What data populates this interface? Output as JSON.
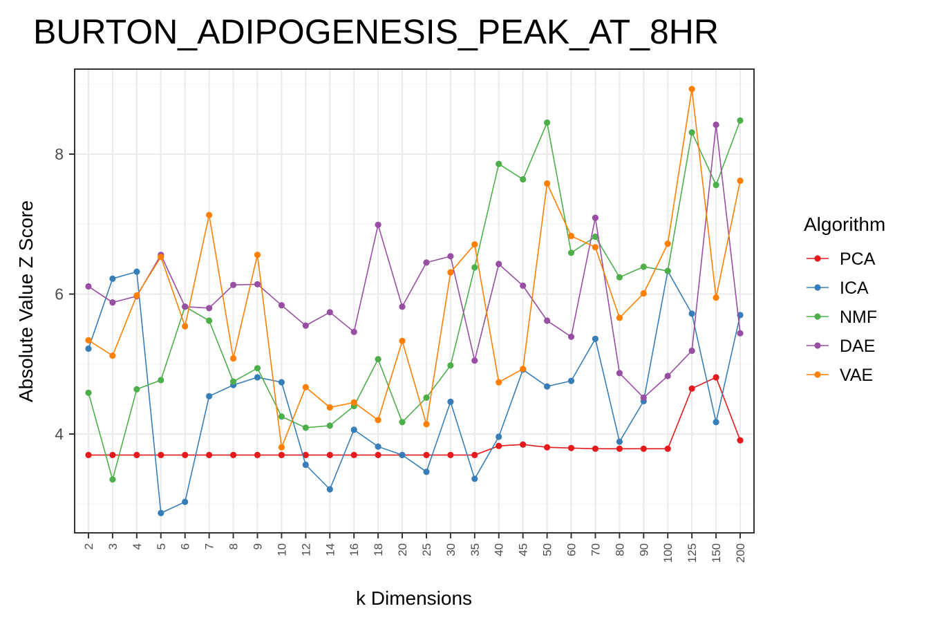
{
  "chart_data": {
    "type": "line",
    "title": "BURTON_ADIPOGENESIS_PEAK_AT_8HR",
    "xlabel": "k Dimensions",
    "ylabel": "Absolute Value Z Score",
    "categories": [
      "2",
      "3",
      "4",
      "5",
      "6",
      "7",
      "8",
      "9",
      "10",
      "12",
      "14",
      "16",
      "18",
      "20",
      "25",
      "30",
      "35",
      "40",
      "45",
      "50",
      "60",
      "70",
      "80",
      "90",
      "100",
      "125",
      "150",
      "200"
    ],
    "yticks": [
      4,
      6,
      8
    ],
    "ylim": [
      2.6,
      9.2
    ],
    "grid": true,
    "legend": {
      "title": "Algorithm",
      "placement": "right"
    },
    "series": [
      {
        "name": "PCA",
        "color": "#e41a1c",
        "values": [
          3.7,
          3.7,
          3.7,
          3.7,
          3.7,
          3.7,
          3.7,
          3.7,
          3.7,
          3.7,
          3.7,
          3.7,
          3.7,
          3.7,
          3.7,
          3.7,
          3.7,
          3.83,
          3.85,
          3.81,
          3.8,
          3.79,
          3.79,
          3.79,
          3.79,
          4.65,
          4.81,
          3.91
        ]
      },
      {
        "name": "ICA",
        "color": "#377eb8",
        "values": [
          5.22,
          6.22,
          6.32,
          2.87,
          3.03,
          4.54,
          4.7,
          4.81,
          4.74,
          3.56,
          3.21,
          4.06,
          3.82,
          3.7,
          3.46,
          4.46,
          3.36,
          3.96,
          4.92,
          4.68,
          4.76,
          5.36,
          3.89,
          4.47,
          6.33,
          5.72,
          4.17,
          5.7
        ]
      },
      {
        "name": "NMF",
        "color": "#4daf4a",
        "values": [
          4.59,
          3.35,
          4.64,
          4.77,
          5.82,
          5.62,
          4.75,
          4.94,
          4.25,
          4.09,
          4.12,
          4.4,
          5.07,
          4.17,
          4.52,
          4.98,
          6.38,
          7.86,
          7.64,
          8.45,
          6.59,
          6.82,
          6.24,
          6.39,
          6.33,
          8.31,
          7.56,
          8.48
        ]
      },
      {
        "name": "DAE",
        "color": "#984ea3",
        "values": [
          6.11,
          5.88,
          5.97,
          6.56,
          5.82,
          5.8,
          6.13,
          6.14,
          5.84,
          5.55,
          5.74,
          5.46,
          6.99,
          5.82,
          6.45,
          6.54,
          5.05,
          6.43,
          6.12,
          5.62,
          5.39,
          7.09,
          4.87,
          4.52,
          4.83,
          5.19,
          8.42,
          5.44
        ]
      },
      {
        "name": "VAE",
        "color": "#ff7f00",
        "values": [
          5.34,
          5.12,
          5.98,
          6.53,
          5.54,
          7.13,
          5.08,
          6.56,
          3.81,
          4.67,
          4.38,
          4.45,
          4.2,
          5.33,
          4.14,
          6.31,
          6.71,
          4.74,
          4.93,
          7.58,
          6.83,
          6.67,
          5.66,
          6.01,
          6.72,
          8.93,
          5.95,
          7.62
        ]
      }
    ]
  }
}
